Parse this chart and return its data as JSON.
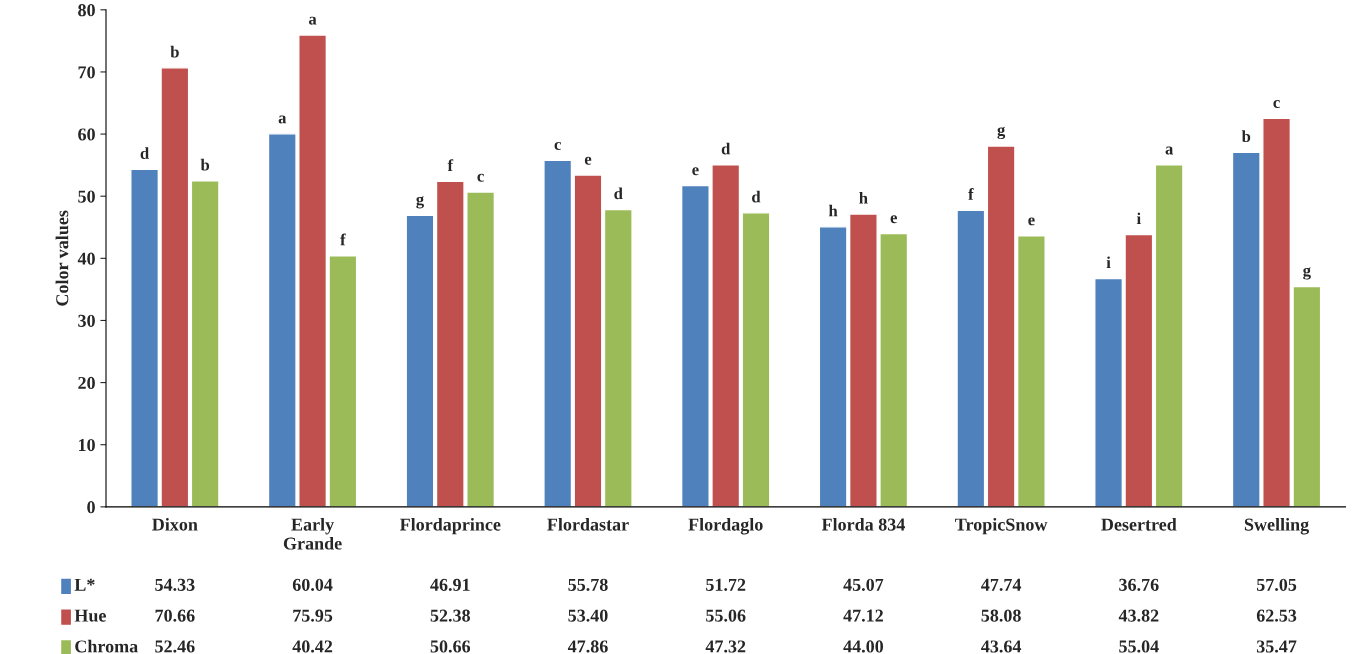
{
  "chart_data": {
    "type": "bar",
    "ylabel": "Color values",
    "categories": [
      "Dixon",
      "Early\nGrande",
      "Flordaprince",
      "Flordastar",
      "Flordaglo",
      "Florda 834",
      "TropicSnow",
      "Desertred",
      "Swelling"
    ],
    "series": [
      {
        "name": "L*",
        "color": "#4f81bd",
        "values": [
          54.33,
          60.04,
          46.91,
          55.78,
          51.72,
          45.07,
          47.74,
          36.76,
          57.05
        ],
        "value_labels": [
          "54.33",
          "60.04",
          "46.91",
          "55.78",
          "51.72",
          "45.07",
          "47.74",
          "36.76",
          "57.05"
        ]
      },
      {
        "name": "Hue",
        "color": "#c0504d",
        "values": [
          70.66,
          75.95,
          52.38,
          53.4,
          55.06,
          47.12,
          58.08,
          43.82,
          62.53
        ],
        "value_labels": [
          "70.66",
          "75.95",
          "52.38",
          "53.40",
          "55.06",
          "47.12",
          "58.08",
          "43.82",
          "62.53"
        ]
      },
      {
        "name": "Chroma",
        "color": "#9bbb59",
        "values": [
          52.46,
          40.42,
          50.66,
          47.86,
          47.32,
          44.0,
          43.64,
          55.04,
          35.47
        ],
        "value_labels": [
          "52.46",
          "40.42",
          "50.66",
          "47.86",
          "47.32",
          "44.00",
          "43.64",
          "55.04",
          "35.47"
        ]
      }
    ],
    "annotations": [
      "d",
      "b",
      "b",
      "a",
      "a",
      "f",
      "g",
      "f",
      "c",
      "c",
      "e",
      "d",
      "e",
      "d",
      "d",
      "h",
      "h",
      "e",
      "f",
      "g",
      "e",
      "i",
      "i",
      "a",
      "b",
      "c",
      "g"
    ],
    "ylim": [
      0,
      80
    ],
    "yticks": [
      0,
      10,
      20,
      30,
      40,
      50,
      60,
      70,
      80
    ],
    "legend": "bottom",
    "grid": false
  }
}
